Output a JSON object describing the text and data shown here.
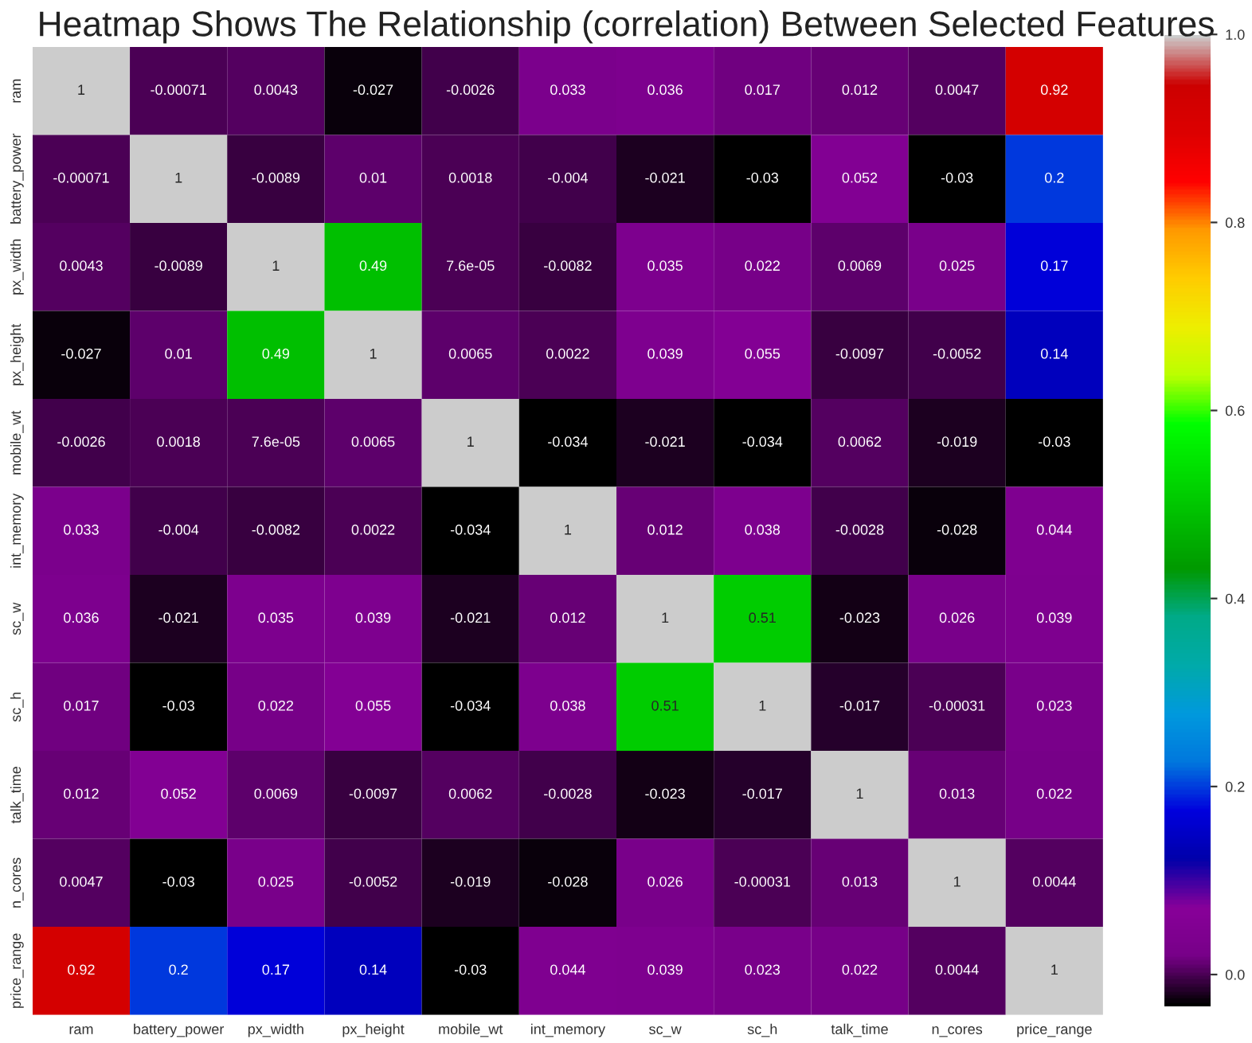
{
  "chart_data": {
    "type": "heatmap",
    "title": "Heatmap Shows The Relationship (correlation) Between Selected Features",
    "categories": [
      "ram",
      "battery_power",
      "px_width",
      "px_height",
      "mobile_wt",
      "int_memory",
      "sc_w",
      "sc_h",
      "talk_time",
      "n_cores",
      "price_range"
    ],
    "y_categories": [
      "ram",
      "battery_power",
      "px_width",
      "px_height",
      "mobile_wt",
      "int_memory",
      "sc_w",
      "sc_h",
      "talk_time",
      "n_cores",
      "price_range"
    ],
    "cells": [
      [
        1,
        -0.00071,
        0.0043,
        -0.027,
        -0.0026,
        0.033,
        0.036,
        0.017,
        0.012,
        0.0047,
        0.92
      ],
      [
        -0.00071,
        1,
        -0.0089,
        0.01,
        0.0018,
        -0.004,
        -0.021,
        -0.03,
        0.052,
        -0.03,
        0.2
      ],
      [
        0.0043,
        -0.0089,
        1,
        0.49,
        7.6e-05,
        -0.0082,
        0.035,
        0.022,
        0.0069,
        0.025,
        0.17
      ],
      [
        -0.027,
        0.01,
        0.49,
        1,
        0.0065,
        0.0022,
        0.039,
        0.055,
        -0.0097,
        -0.0052,
        0.14
      ],
      [
        -0.0026,
        0.0018,
        7.6e-05,
        0.0065,
        1,
        -0.034,
        -0.021,
        -0.034,
        0.0062,
        -0.019,
        -0.03
      ],
      [
        0.033,
        -0.004,
        -0.0082,
        0.0022,
        -0.034,
        1,
        0.012,
        0.038,
        -0.0028,
        -0.028,
        0.044
      ],
      [
        0.036,
        -0.021,
        0.035,
        0.039,
        -0.021,
        0.012,
        1,
        0.51,
        -0.023,
        0.026,
        0.039
      ],
      [
        0.017,
        -0.03,
        0.022,
        0.055,
        -0.034,
        0.038,
        0.51,
        1,
        -0.017,
        -0.00031,
        0.023
      ],
      [
        0.012,
        0.052,
        0.0069,
        -0.0097,
        0.0062,
        -0.0028,
        -0.023,
        -0.017,
        1,
        0.013,
        0.022
      ],
      [
        0.0047,
        -0.03,
        0.025,
        -0.0052,
        -0.019,
        -0.028,
        0.026,
        -0.00031,
        0.013,
        1,
        0.0044
      ],
      [
        0.92,
        0.2,
        0.17,
        0.14,
        -0.03,
        0.044,
        0.039,
        0.023,
        0.022,
        0.0044,
        1
      ]
    ],
    "clim": [
      -0.034,
      1
    ],
    "cticks": [
      {
        "value": 0,
        "label": "0.0"
      },
      {
        "value": 0.2,
        "label": "0.2"
      },
      {
        "value": 0.4,
        "label": "0.4"
      },
      {
        "value": 0.6,
        "label": "0.6"
      },
      {
        "value": 0.8,
        "label": "0.8"
      },
      {
        "value": 1,
        "label": "1.0"
      }
    ],
    "data_labels": true
  }
}
